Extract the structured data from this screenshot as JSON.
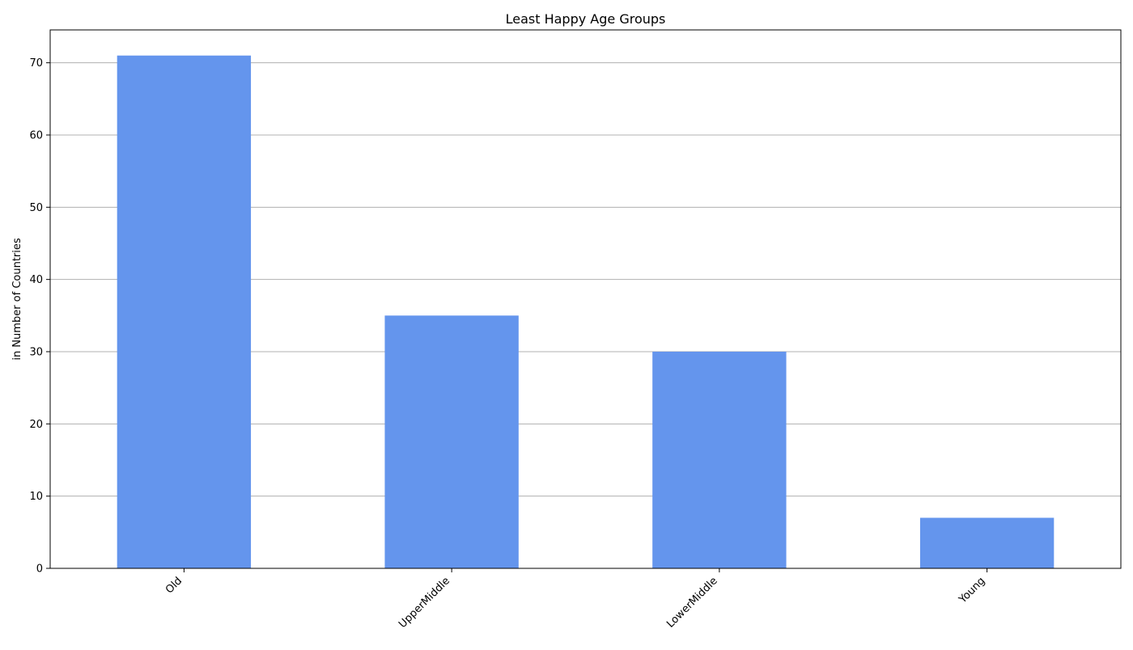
{
  "chart_data": {
    "type": "bar",
    "title": "Least Happy Age Groups",
    "xlabel": "",
    "ylabel": "in Number of Countries",
    "categories": [
      "Old",
      "UpperMiddle",
      "LowerMiddle",
      "Young"
    ],
    "values": [
      71,
      35,
      30,
      7
    ],
    "ylim": [
      0,
      74.55
    ],
    "yticks": [
      0,
      10,
      20,
      30,
      40,
      50,
      60,
      70
    ],
    "grid": "y",
    "legend": "none",
    "bar_color": "#6495ED",
    "grid_color": "#b0b0b0"
  }
}
